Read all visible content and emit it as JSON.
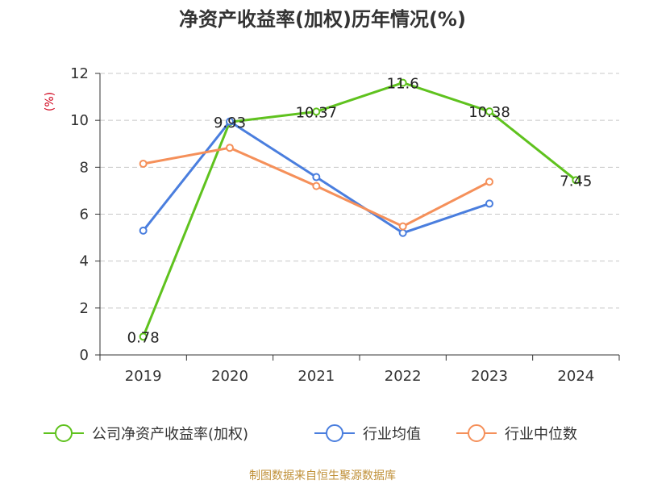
{
  "chart_data": {
    "type": "line",
    "title": "净资产收益率(加权)历年情况(%)",
    "ylabel": "(%)",
    "xlabel": "",
    "categories": [
      "2019",
      "2020",
      "2021",
      "2022",
      "2023",
      "2024"
    ],
    "ylim": [
      0,
      12
    ],
    "yticks": [
      "0",
      "2",
      "4",
      "6",
      "8",
      "10",
      "12"
    ],
    "grid": true,
    "legend_position": "bottom",
    "series": [
      {
        "name": "公司净资产收益率(加权)",
        "color": "#5fc21e",
        "values": [
          0.78,
          9.93,
          10.37,
          11.6,
          10.38,
          7.45
        ],
        "labels": [
          "0.78",
          "9.93",
          "10.37",
          "11.6",
          "10.38",
          "7.45"
        ]
      },
      {
        "name": "行业均值",
        "color": "#4a7ede",
        "values": [
          5.3,
          9.95,
          7.58,
          5.2,
          6.45,
          null
        ]
      },
      {
        "name": "行业中位数",
        "color": "#f5905a",
        "values": [
          8.15,
          8.83,
          7.2,
          5.48,
          7.38,
          null
        ]
      }
    ],
    "ylabel_color": "#d0021b"
  },
  "source": {
    "text": "制图数据来自恒生聚源数据库",
    "color": "#c0913a"
  }
}
